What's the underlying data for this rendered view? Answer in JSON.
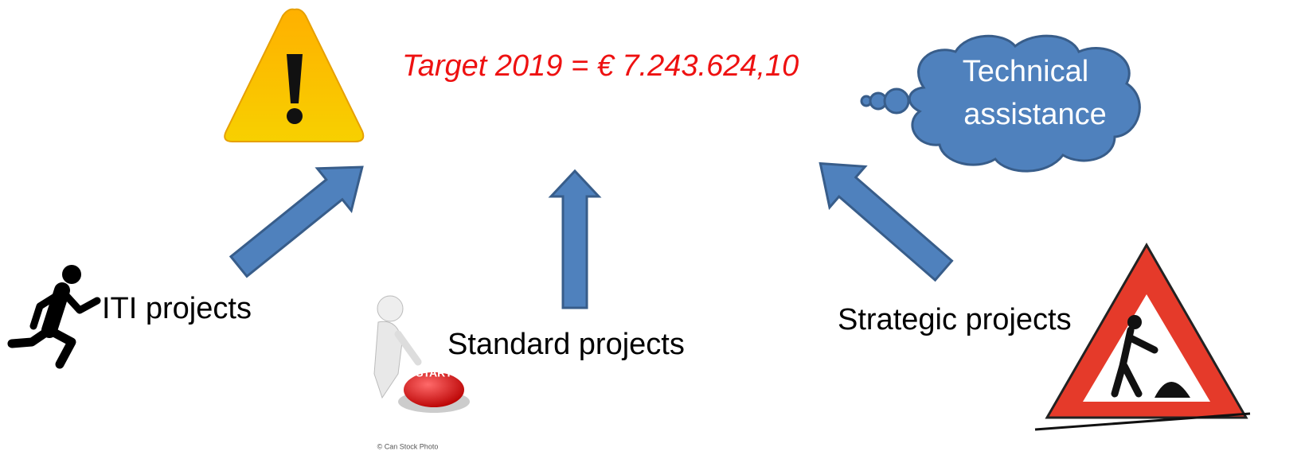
{
  "title": "Target 2019 = € 7.243.624,10",
  "cloud": {
    "lines": [
      "Technical",
      "assistance"
    ]
  },
  "sources": [
    {
      "label": "ITI projects"
    },
    {
      "label": "Standard projects"
    },
    {
      "label": "Strategic projects"
    }
  ],
  "watermark": "© Can Stock Photo"
}
